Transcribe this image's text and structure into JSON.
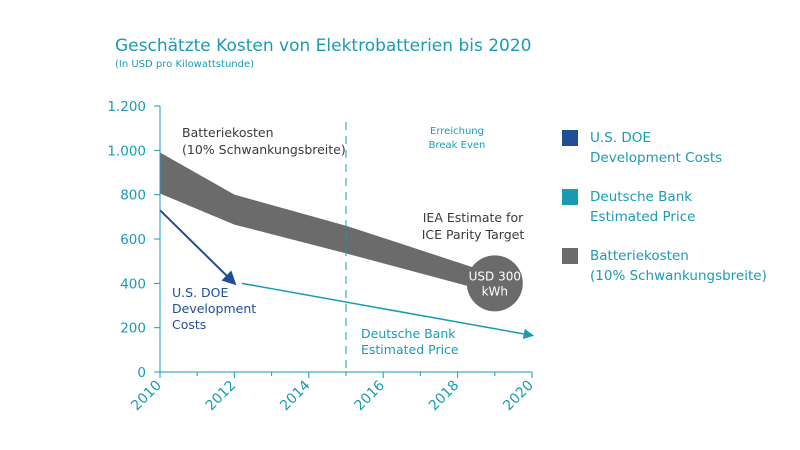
{
  "title": "Geschätzte Kosten von Elektrobatterien bis 2020",
  "subtitle": "(In USD pro Kilowattstunde)",
  "colors": {
    "accent": "#1a9bb5",
    "doe": "#1f4e96",
    "deutsche_bank": "#1a9bb5",
    "band": "#6b6b6b"
  },
  "chart_data": {
    "type": "area",
    "x_ticks": [
      2010,
      2012,
      2014,
      2016,
      2018,
      2020
    ],
    "y_ticks": [
      0,
      200,
      400,
      600,
      800,
      1000,
      1200
    ],
    "y_tick_labels": [
      "0",
      "200",
      "400",
      "600",
      "800",
      "1.000",
      "1.200"
    ],
    "xlim": [
      2010,
      2020
    ],
    "ylim": [
      0,
      1200
    ],
    "grid": false,
    "break_even_year": 2015,
    "series": [
      {
        "name": "U.S. DOE Development Costs",
        "type": "line-arrow",
        "x": [
          2010,
          2012
        ],
        "y": [
          730,
          400
        ]
      },
      {
        "name": "Deutsche Bank Estimated Price",
        "type": "line-arrow",
        "x": [
          2012.2,
          2020
        ],
        "y": [
          400,
          165
        ]
      },
      {
        "name": "Batteriekosten (10% Schwankungsbreite)",
        "type": "band",
        "x": [
          2010,
          2012,
          2015,
          2019
        ],
        "upper": [
          990,
          800,
          660,
          440
        ],
        "lower": [
          805,
          665,
          535,
          355
        ]
      }
    ],
    "marker": {
      "x": 2019,
      "y": 400,
      "line1": "USD 300",
      "line2": "kWh"
    },
    "annotations": {
      "band_label_1": "Batteriekosten",
      "band_label_2": "(10% Schwankungsbreite)",
      "break_even_1": "Erreichung",
      "break_even_2": "Break Even",
      "iea_1": "IEA Estimate for",
      "iea_2": "ICE Parity Target",
      "doe_1": "U.S. DOE",
      "doe_2": "Development",
      "doe_3": "Costs",
      "db_1": "Deutsche Bank",
      "db_2": "Estimated Price"
    }
  },
  "legend": [
    {
      "label": "U.S. DOE\nDevelopment Costs",
      "color": "#1f4e96"
    },
    {
      "label": "Deutsche Bank\nEstimated Price",
      "color": "#1a9bb5"
    },
    {
      "label": "Batteriekosten\n(10% Schwankungsbreite)",
      "color": "#6b6b6b"
    }
  ]
}
